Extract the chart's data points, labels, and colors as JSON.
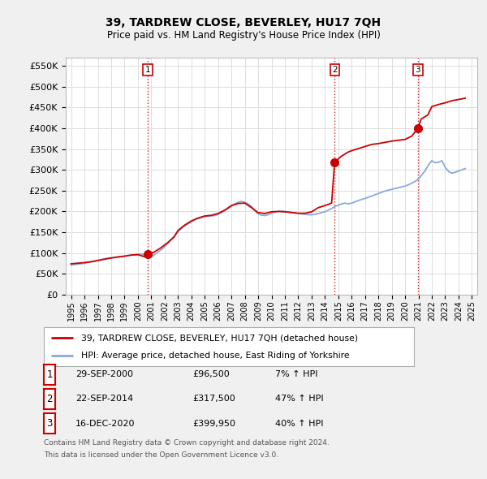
{
  "title": "39, TARDREW CLOSE, BEVERLEY, HU17 7QH",
  "subtitle": "Price paid vs. HM Land Registry's House Price Index (HPI)",
  "ytick_values": [
    0,
    50000,
    100000,
    150000,
    200000,
    250000,
    300000,
    350000,
    400000,
    450000,
    500000,
    550000
  ],
  "ylim": [
    0,
    570000
  ],
  "xlim_start": 1994.6,
  "xlim_end": 2025.4,
  "grid_color": "#dddddd",
  "background_color": "#f0f0f0",
  "plot_bg_color": "#ffffff",
  "sale_color": "#cc0000",
  "hpi_color": "#88aadd",
  "vline_color": "#cc0000",
  "purchases": [
    {
      "date_num": 2000.74,
      "price": 96500,
      "label": "1"
    },
    {
      "date_num": 2014.72,
      "price": 317500,
      "label": "2"
    },
    {
      "date_num": 2020.96,
      "price": 399950,
      "label": "3"
    }
  ],
  "purchase_dates_text": [
    "29-SEP-2000",
    "22-SEP-2014",
    "16-DEC-2020"
  ],
  "purchase_prices_text": [
    "£96,500",
    "£317,500",
    "£399,950"
  ],
  "purchase_hpi_text": [
    "7% ↑ HPI",
    "47% ↑ HPI",
    "40% ↑ HPI"
  ],
  "legend_label_sale": "39, TARDREW CLOSE, BEVERLEY, HU17 7QH (detached house)",
  "legend_label_hpi": "HPI: Average price, detached house, East Riding of Yorkshire",
  "footnote_line1": "Contains HM Land Registry data © Crown copyright and database right 2024.",
  "footnote_line2": "This data is licensed under the Open Government Licence v3.0.",
  "hpi_years": [
    1995.0,
    1995.25,
    1995.5,
    1995.75,
    1996.0,
    1996.25,
    1996.5,
    1996.75,
    1997.0,
    1997.25,
    1997.5,
    1997.75,
    1998.0,
    1998.25,
    1998.5,
    1998.75,
    1999.0,
    1999.25,
    1999.5,
    1999.75,
    2000.0,
    2000.25,
    2000.5,
    2000.75,
    2001.0,
    2001.25,
    2001.5,
    2001.75,
    2002.0,
    2002.25,
    2002.5,
    2002.75,
    2003.0,
    2003.25,
    2003.5,
    2003.75,
    2004.0,
    2004.25,
    2004.5,
    2004.75,
    2005.0,
    2005.25,
    2005.5,
    2005.75,
    2006.0,
    2006.25,
    2006.5,
    2006.75,
    2007.0,
    2007.25,
    2007.5,
    2007.75,
    2008.0,
    2008.25,
    2008.5,
    2008.75,
    2009.0,
    2009.25,
    2009.5,
    2009.75,
    2010.0,
    2010.25,
    2010.5,
    2010.75,
    2011.0,
    2011.25,
    2011.5,
    2011.75,
    2012.0,
    2012.25,
    2012.5,
    2012.75,
    2013.0,
    2013.25,
    2013.5,
    2013.75,
    2014.0,
    2014.25,
    2014.5,
    2014.75,
    2015.0,
    2015.25,
    2015.5,
    2015.75,
    2016.0,
    2016.25,
    2016.5,
    2016.75,
    2017.0,
    2017.25,
    2017.5,
    2017.75,
    2018.0,
    2018.25,
    2018.5,
    2018.75,
    2019.0,
    2019.25,
    2019.5,
    2019.75,
    2020.0,
    2020.25,
    2020.5,
    2020.75,
    2021.0,
    2021.25,
    2021.5,
    2021.75,
    2022.0,
    2022.25,
    2022.5,
    2022.75,
    2023.0,
    2023.25,
    2023.5,
    2023.75,
    2024.0,
    2024.25,
    2024.5
  ],
  "hpi_values": [
    71000,
    72000,
    73000,
    74000,
    75000,
    77000,
    78500,
    80000,
    82000,
    84000,
    86000,
    87500,
    88000,
    89000,
    90000,
    91000,
    92000,
    93500,
    95000,
    96000,
    97000,
    97500,
    96000,
    90000,
    91000,
    96000,
    102000,
    108000,
    115000,
    124000,
    133000,
    142000,
    151000,
    159000,
    165000,
    170000,
    175000,
    180000,
    183000,
    185000,
    187000,
    188000,
    189000,
    190000,
    193000,
    197000,
    202000,
    207000,
    212000,
    218000,
    222000,
    224000,
    222000,
    218000,
    212000,
    202000,
    194000,
    191000,
    190000,
    192000,
    195000,
    198000,
    200000,
    200000,
    200000,
    199000,
    197000,
    196000,
    195000,
    194000,
    193000,
    192000,
    192000,
    193000,
    195000,
    197000,
    199000,
    203000,
    207000,
    212000,
    215000,
    218000,
    220000,
    218000,
    220000,
    223000,
    226000,
    229000,
    231000,
    234000,
    237000,
    240000,
    243000,
    246000,
    249000,
    251000,
    253000,
    255000,
    257000,
    259000,
    261000,
    264000,
    268000,
    272000,
    278000,
    288000,
    298000,
    312000,
    322000,
    317000,
    318000,
    322000,
    306000,
    296000,
    292000,
    294000,
    297000,
    300000,
    303000,
    306000,
    308000,
    311000,
    313000
  ],
  "sale_years": [
    1995.0,
    1995.5,
    1996.0,
    1996.5,
    1997.0,
    1997.5,
    1998.0,
    1998.5,
    1999.0,
    1999.5,
    2000.0,
    2000.5,
    2000.74,
    2001.2,
    2001.7,
    2002.2,
    2002.7,
    2003.0,
    2003.5,
    2004.0,
    2004.5,
    2005.0,
    2005.5,
    2006.0,
    2006.5,
    2007.0,
    2007.5,
    2008.0,
    2008.5,
    2009.0,
    2009.5,
    2010.0,
    2010.5,
    2011.0,
    2011.5,
    2012.0,
    2012.5,
    2013.0,
    2013.5,
    2014.0,
    2014.5,
    2014.72,
    2015.2,
    2015.7,
    2016.0,
    2016.5,
    2017.0,
    2017.5,
    2018.0,
    2018.5,
    2019.0,
    2019.5,
    2020.0,
    2020.5,
    2020.96,
    2021.2,
    2021.7,
    2022.0,
    2022.5,
    2023.0,
    2023.5,
    2024.0,
    2024.5
  ],
  "sale_values": [
    74000,
    75500,
    77000,
    79000,
    82000,
    85000,
    88000,
    90500,
    92500,
    95000,
    96000,
    91000,
    96500,
    102000,
    112000,
    124000,
    138000,
    154000,
    167000,
    177000,
    184000,
    189000,
    190500,
    195000,
    203000,
    214000,
    219000,
    220000,
    209000,
    197000,
    195000,
    199000,
    200000,
    199000,
    197500,
    195500,
    195500,
    199000,
    209000,
    214000,
    220000,
    317500,
    332000,
    342000,
    346000,
    351000,
    356000,
    361000,
    363000,
    366000,
    369000,
    371000,
    373000,
    381000,
    399950,
    422000,
    432000,
    452000,
    457000,
    461000,
    466000,
    469000,
    472000
  ]
}
